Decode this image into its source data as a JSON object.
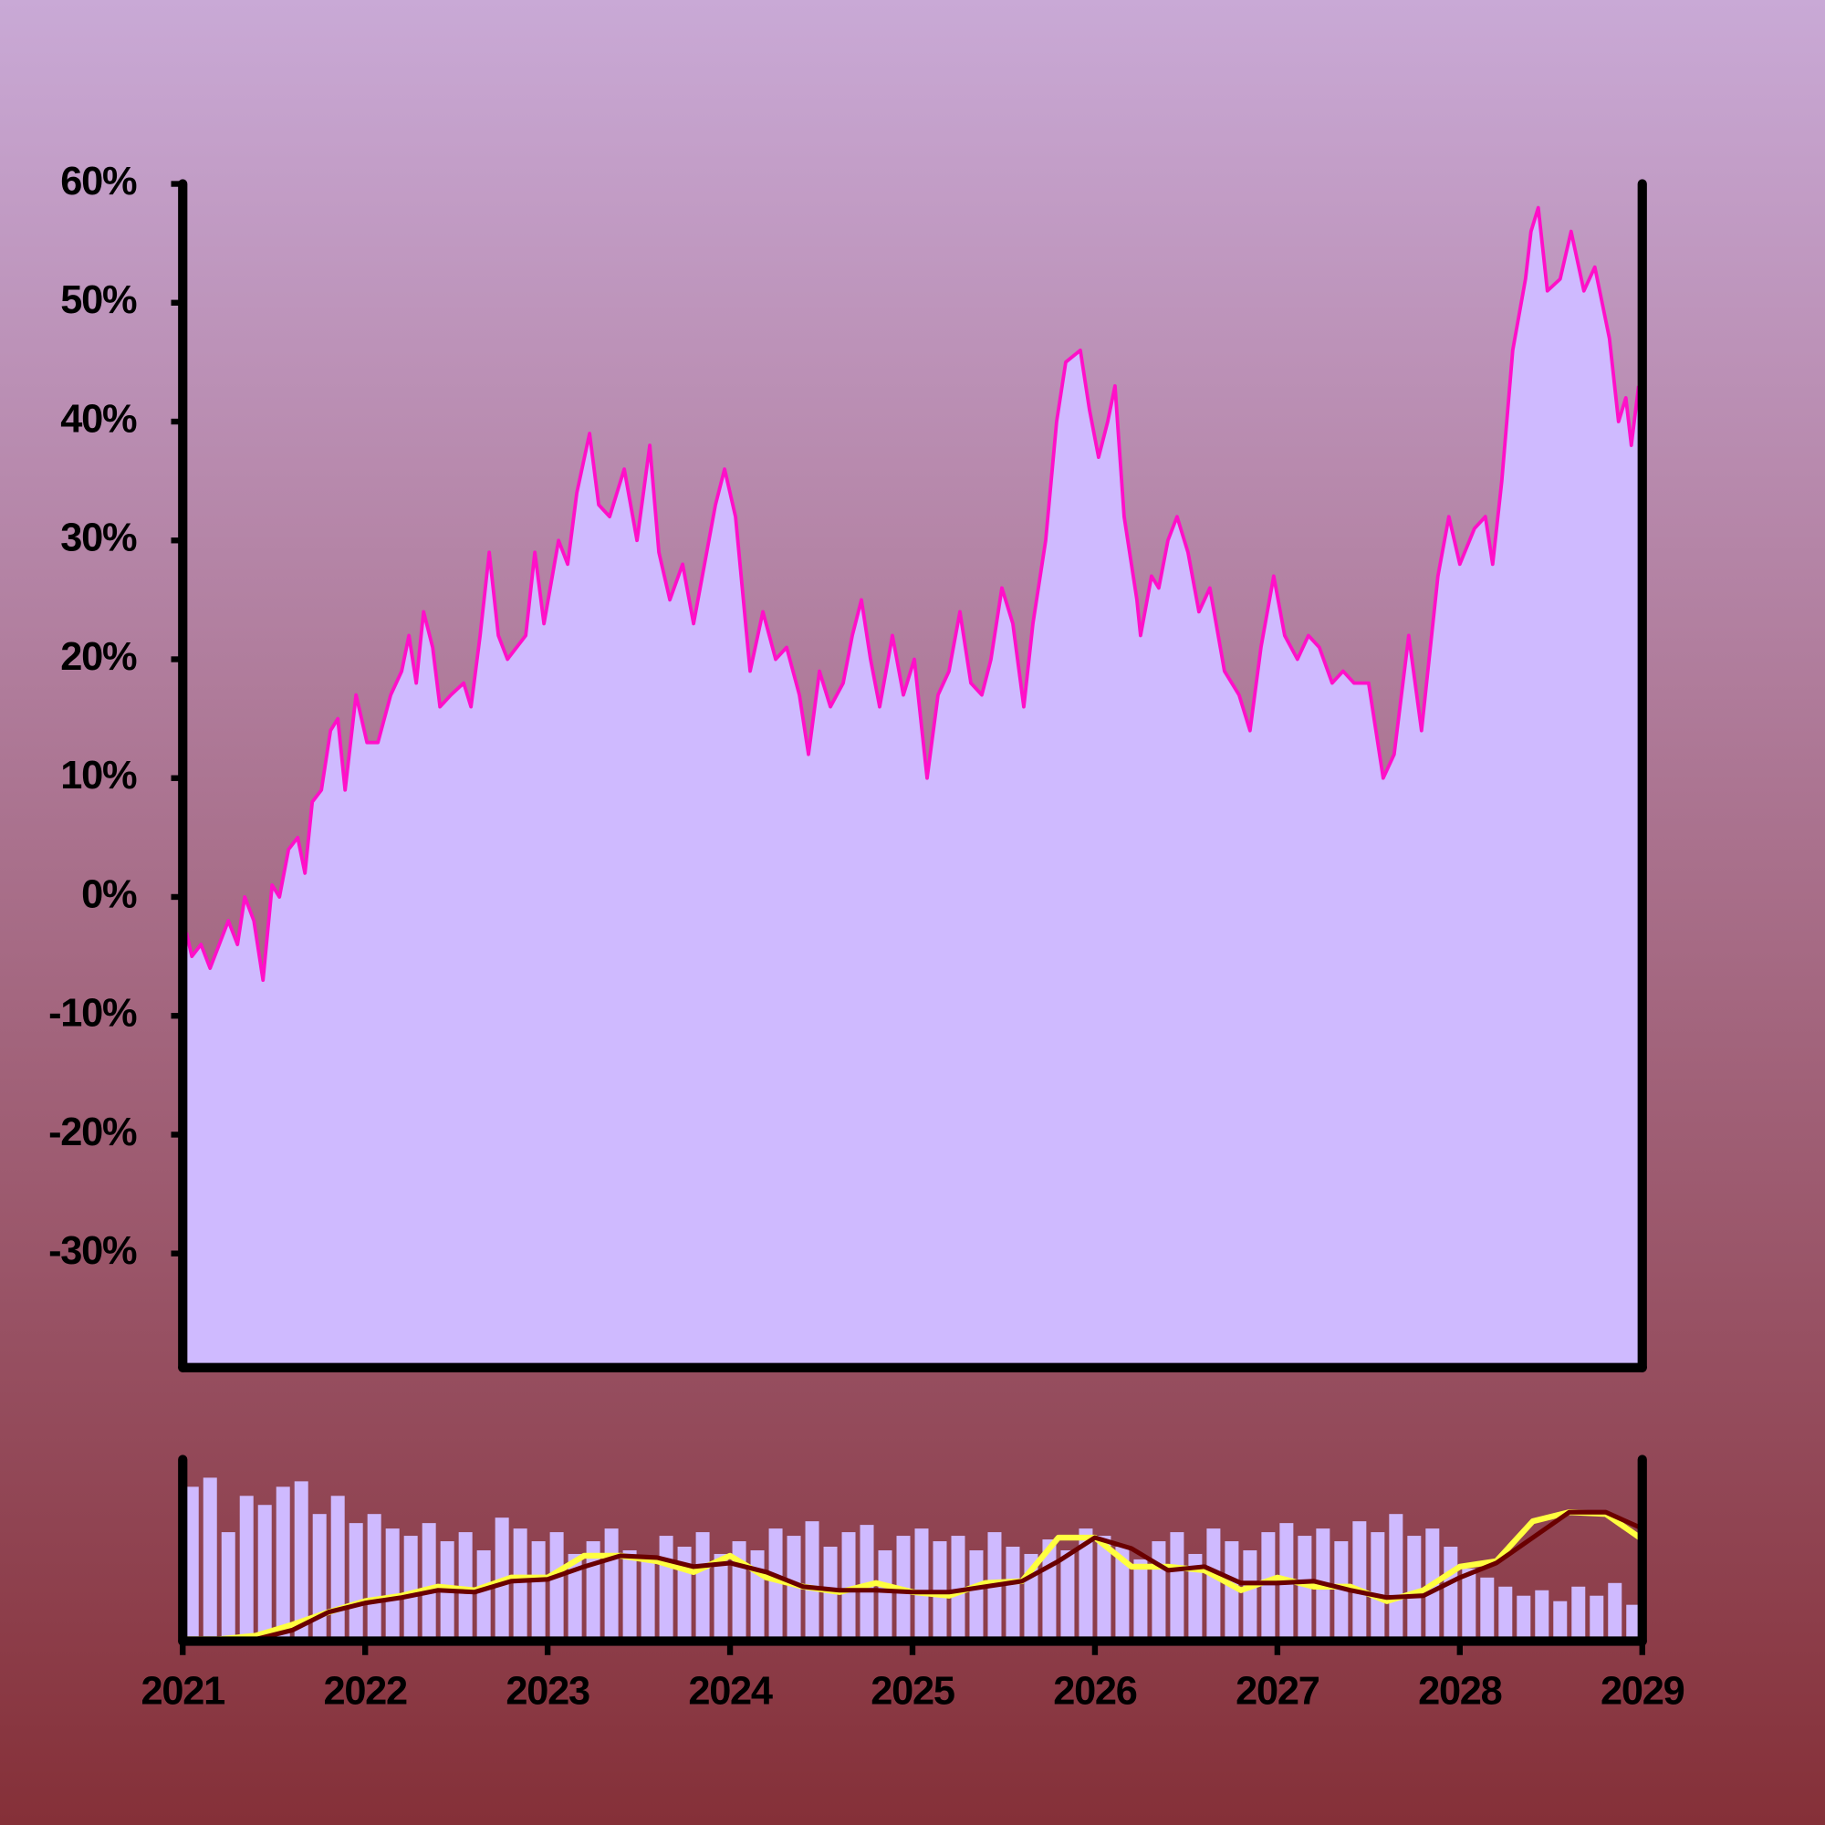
{
  "chart_data": [
    {
      "type": "area",
      "color": "#ff10c8",
      "fill": "#cfbaff",
      "xlim": [
        2021,
        2029
      ],
      "ylim": [
        -39.6,
        60
      ],
      "yticks": [
        {
          "value": 60,
          "label": "60%"
        },
        {
          "value": 50,
          "label": "50%"
        },
        {
          "value": 40,
          "label": "40%"
        },
        {
          "value": 30,
          "label": "30%"
        },
        {
          "value": 20,
          "label": "20%"
        },
        {
          "value": 10,
          "label": "10%"
        },
        {
          "value": 0,
          "label": "0%"
        },
        {
          "value": -10,
          "label": "-10%"
        },
        {
          "value": -20,
          "label": "-20%"
        },
        {
          "value": -30,
          "label": "-30%"
        }
      ],
      "x": [
        2021.02,
        2021.05,
        2021.1,
        2021.15,
        2021.2,
        2021.25,
        2021.3,
        2021.34,
        2021.39,
        2021.44,
        2021.49,
        2021.53,
        2021.58,
        2021.63,
        2021.67,
        2021.71,
        2021.76,
        2021.81,
        2021.85,
        2021.89,
        2021.95,
        2022.01,
        2022.07,
        2022.14,
        2022.2,
        2022.24,
        2022.28,
        2022.32,
        2022.37,
        2022.41,
        2022.47,
        2022.54,
        2022.58,
        2022.63,
        2022.68,
        2022.73,
        2022.78,
        2022.83,
        2022.88,
        2022.93,
        2022.98,
        2023.06,
        2023.11,
        2023.16,
        2023.23,
        2023.28,
        2023.34,
        2023.42,
        2023.49,
        2023.56,
        2023.61,
        2023.67,
        2023.74,
        2023.8,
        2023.86,
        2023.92,
        2023.97,
        2024.03,
        2024.11,
        2024.18,
        2024.25,
        2024.31,
        2024.38,
        2024.43,
        2024.49,
        2024.55,
        2024.62,
        2024.67,
        2024.72,
        2024.77,
        2024.82,
        2024.89,
        2024.95,
        2025.01,
        2025.08,
        2025.14,
        2025.2,
        2025.26,
        2025.32,
        2025.38,
        2025.43,
        2025.49,
        2025.55,
        2025.61,
        2025.66,
        2025.73,
        2025.79,
        2025.84,
        2025.92,
        2025.97,
        2026.02,
        2026.07,
        2026.11,
        2026.16,
        2026.23,
        2026.25,
        2026.31,
        2026.35,
        2026.4,
        2026.45,
        2026.51,
        2026.57,
        2026.63,
        2026.71,
        2026.79,
        2026.85,
        2026.91,
        2026.98,
        2027.04,
        2027.11,
        2027.17,
        2027.23,
        2027.3,
        2027.36,
        2027.42,
        2027.5,
        2027.58,
        2027.64,
        2027.72,
        2027.79,
        2027.88,
        2027.94,
        2028.0,
        2028.08,
        2028.14,
        2028.18,
        2028.23,
        2028.29,
        2028.36,
        2028.39,
        2028.43,
        2028.48,
        2028.55,
        2028.61,
        2028.68,
        2028.74,
        2028.82,
        2028.87,
        2028.91,
        2028.94,
        2028.98
      ],
      "values": [
        -3,
        -5,
        -4,
        -6,
        -4,
        -2,
        -4,
        0,
        -2,
        -7,
        1,
        0,
        4,
        5,
        2,
        8,
        9,
        14,
        15,
        9,
        17,
        13,
        13,
        17,
        19,
        22,
        18,
        24,
        21,
        16,
        17,
        18,
        16,
        22,
        29,
        22,
        20,
        21,
        22,
        29,
        23,
        30,
        28,
        34,
        39,
        33,
        32,
        36,
        30,
        38,
        29,
        25,
        28,
        23,
        28,
        33,
        36,
        32,
        19,
        24,
        20,
        21,
        17,
        12,
        19,
        16,
        18,
        22,
        25,
        20,
        16,
        22,
        17,
        20,
        10,
        17,
        19,
        24,
        18,
        17,
        20,
        26,
        23,
        16,
        23,
        30,
        40,
        45,
        46,
        41,
        37,
        40,
        43,
        32,
        25,
        22,
        27,
        26,
        30,
        32,
        29,
        24,
        26,
        19,
        17,
        14,
        21,
        27,
        22,
        20,
        22,
        21,
        18,
        19,
        18,
        18,
        10,
        12,
        22,
        14,
        27,
        32,
        28,
        31,
        32,
        28,
        35,
        46,
        52,
        56,
        58,
        51,
        52,
        56,
        51,
        53,
        47,
        40,
        42,
        38,
        43
      ]
    },
    {
      "type": "bar",
      "color": "#cfbaff",
      "xlim": [
        2021,
        2029
      ],
      "ylim": [
        0,
        100
      ],
      "xticks": [
        2021,
        2022,
        2023,
        2024,
        2025,
        2026,
        2027,
        2028,
        2029
      ],
      "x": [
        2021.05,
        2021.15,
        2021.25,
        2021.35,
        2021.45,
        2021.55,
        2021.65,
        2021.75,
        2021.85,
        2021.95,
        2022.05,
        2022.15,
        2022.25,
        2022.35,
        2022.45,
        2022.55,
        2022.65,
        2022.75,
        2022.85,
        2022.95,
        2023.05,
        2023.15,
        2023.25,
        2023.35,
        2023.45,
        2023.55,
        2023.65,
        2023.75,
        2023.85,
        2023.95,
        2024.05,
        2024.15,
        2024.25,
        2024.35,
        2024.45,
        2024.55,
        2024.65,
        2024.75,
        2024.85,
        2024.95,
        2025.05,
        2025.15,
        2025.25,
        2025.35,
        2025.45,
        2025.55,
        2025.65,
        2025.75,
        2025.85,
        2025.95,
        2026.05,
        2026.15,
        2026.25,
        2026.35,
        2026.45,
        2026.55,
        2026.65,
        2026.75,
        2026.85,
        2026.95,
        2027.05,
        2027.15,
        2027.25,
        2027.35,
        2027.45,
        2027.55,
        2027.65,
        2027.75,
        2027.85,
        2027.95,
        2028.05,
        2028.15,
        2028.25,
        2028.35,
        2028.45,
        2028.55,
        2028.65,
        2028.75,
        2028.85,
        2028.95
      ],
      "values": [
        85,
        90,
        60,
        80,
        75,
        85,
        88,
        70,
        80,
        65,
        70,
        62,
        58,
        65,
        55,
        60,
        50,
        68,
        62,
        55,
        60,
        48,
        55,
        62,
        50,
        45,
        58,
        52,
        60,
        48,
        55,
        50,
        62,
        58,
        66,
        52,
        60,
        64,
        50,
        58,
        62,
        55,
        58,
        50,
        60,
        52,
        48,
        56,
        50,
        62,
        58,
        52,
        45,
        55,
        60,
        48,
        62,
        55,
        50,
        60,
        65,
        58,
        62,
        55,
        66,
        60,
        70,
        58,
        62,
        52,
        40,
        35,
        30,
        25,
        28,
        22,
        30,
        25,
        32,
        20
      ],
      "line_x": [
        2021.0,
        2021.2,
        2021.4,
        2021.6,
        2021.8,
        2022.0,
        2022.2,
        2022.4,
        2022.6,
        2022.8,
        2023.0,
        2023.2,
        2023.4,
        2023.6,
        2023.8,
        2024.0,
        2024.2,
        2024.4,
        2024.6,
        2024.8,
        2025.0,
        2025.2,
        2025.4,
        2025.6,
        2025.8,
        2026.0,
        2026.2,
        2026.4,
        2026.6,
        2026.8,
        2027.0,
        2027.2,
        2027.4,
        2027.6,
        2027.8,
        2028.0,
        2028.2,
        2028.4,
        2028.6,
        2028.8,
        2029.0
      ],
      "lines": [
        {
          "color": "#ffff40",
          "values": [
            1,
            1,
            3,
            9,
            16,
            22,
            25,
            30,
            28,
            35,
            35,
            47,
            47,
            44,
            38,
            47,
            35,
            30,
            27,
            32,
            27,
            25,
            32,
            33,
            57,
            57,
            41,
            41,
            39,
            28,
            35,
            30,
            30,
            22,
            28,
            41,
            44,
            66,
            71,
            70,
            56
          ]
        },
        {
          "color": "#6a0000",
          "values": [
            0,
            0,
            1,
            6,
            16,
            21,
            24,
            28,
            27,
            33,
            34,
            41,
            47,
            46,
            41,
            43,
            38,
            30,
            28,
            28,
            27,
            27,
            30,
            33,
            44,
            57,
            51,
            39,
            41,
            32,
            32,
            33,
            28,
            24,
            25,
            35,
            43,
            57,
            71,
            71,
            62
          ]
        }
      ]
    }
  ]
}
